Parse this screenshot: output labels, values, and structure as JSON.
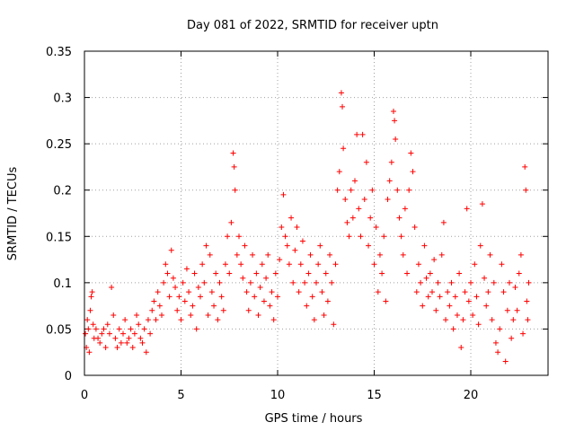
{
  "chart_data": {
    "type": "scatter",
    "title": "Day 081 of 2022, SRMTID for receiver uptn",
    "xlabel": "GPS time / hours",
    "ylabel": "SRMTID / TECUs",
    "xlim": [
      0,
      24
    ],
    "ylim": [
      0,
      0.35
    ],
    "xticks": [
      "0",
      "5",
      "10",
      "15",
      "20"
    ],
    "yticks": [
      "0",
      "0.05",
      "0.1",
      "0.15",
      "0.2",
      "0.25",
      "0.3",
      "0.35"
    ],
    "grid": true,
    "marker": "plus",
    "color": "#ff0000",
    "series": [
      {
        "name": "SRMTID",
        "points": [
          [
            0.05,
            0.045
          ],
          [
            0.1,
            0.03
          ],
          [
            0.15,
            0.06
          ],
          [
            0.2,
            0.05
          ],
          [
            0.25,
            0.025
          ],
          [
            0.3,
            0.07
          ],
          [
            0.35,
            0.085
          ],
          [
            0.4,
            0.09
          ],
          [
            0.45,
            0.055
          ],
          [
            0.5,
            0.04
          ],
          [
            0.6,
            0.05
          ],
          [
            0.7,
            0.04
          ],
          [
            0.8,
            0.035
          ],
          [
            0.9,
            0.045
          ],
          [
            1.0,
            0.05
          ],
          [
            1.1,
            0.03
          ],
          [
            1.2,
            0.055
          ],
          [
            1.3,
            0.045
          ],
          [
            1.4,
            0.095
          ],
          [
            1.5,
            0.065
          ],
          [
            1.6,
            0.04
          ],
          [
            1.7,
            0.03
          ],
          [
            1.8,
            0.05
          ],
          [
            1.9,
            0.035
          ],
          [
            2.0,
            0.045
          ],
          [
            2.1,
            0.06
          ],
          [
            2.2,
            0.035
          ],
          [
            2.3,
            0.04
          ],
          [
            2.4,
            0.05
          ],
          [
            2.5,
            0.03
          ],
          [
            2.6,
            0.045
          ],
          [
            2.7,
            0.065
          ],
          [
            2.8,
            0.055
          ],
          [
            2.9,
            0.04
          ],
          [
            3.0,
            0.035
          ],
          [
            3.1,
            0.05
          ],
          [
            3.2,
            0.025
          ],
          [
            3.3,
            0.06
          ],
          [
            3.4,
            0.045
          ],
          [
            3.5,
            0.07
          ],
          [
            3.6,
            0.08
          ],
          [
            3.7,
            0.06
          ],
          [
            3.8,
            0.09
          ],
          [
            3.9,
            0.075
          ],
          [
            4.0,
            0.065
          ],
          [
            4.1,
            0.1
          ],
          [
            4.2,
            0.12
          ],
          [
            4.3,
            0.11
          ],
          [
            4.4,
            0.085
          ],
          [
            4.5,
            0.135
          ],
          [
            4.6,
            0.105
          ],
          [
            4.7,
            0.095
          ],
          [
            4.8,
            0.07
          ],
          [
            4.9,
            0.085
          ],
          [
            5.0,
            0.06
          ],
          [
            5.1,
            0.1
          ],
          [
            5.2,
            0.08
          ],
          [
            5.3,
            0.115
          ],
          [
            5.4,
            0.09
          ],
          [
            5.5,
            0.065
          ],
          [
            5.6,
            0.075
          ],
          [
            5.7,
            0.11
          ],
          [
            5.8,
            0.05
          ],
          [
            5.9,
            0.095
          ],
          [
            6.0,
            0.085
          ],
          [
            6.1,
            0.12
          ],
          [
            6.2,
            0.1
          ],
          [
            6.3,
            0.14
          ],
          [
            6.4,
            0.065
          ],
          [
            6.5,
            0.13
          ],
          [
            6.6,
            0.09
          ],
          [
            6.7,
            0.075
          ],
          [
            6.8,
            0.11
          ],
          [
            6.9,
            0.06
          ],
          [
            7.0,
            0.1
          ],
          [
            7.1,
            0.085
          ],
          [
            7.2,
            0.07
          ],
          [
            7.3,
            0.12
          ],
          [
            7.4,
            0.15
          ],
          [
            7.5,
            0.11
          ],
          [
            7.6,
            0.165
          ],
          [
            7.7,
            0.24
          ],
          [
            7.75,
            0.225
          ],
          [
            7.8,
            0.2
          ],
          [
            7.9,
            0.13
          ],
          [
            8.0,
            0.15
          ],
          [
            8.1,
            0.12
          ],
          [
            8.2,
            0.105
          ],
          [
            8.3,
            0.14
          ],
          [
            8.4,
            0.09
          ],
          [
            8.5,
            0.07
          ],
          [
            8.6,
            0.1
          ],
          [
            8.7,
            0.13
          ],
          [
            8.8,
            0.085
          ],
          [
            8.9,
            0.11
          ],
          [
            9.0,
            0.065
          ],
          [
            9.1,
            0.095
          ],
          [
            9.2,
            0.12
          ],
          [
            9.3,
            0.08
          ],
          [
            9.4,
            0.105
          ],
          [
            9.5,
            0.13
          ],
          [
            9.6,
            0.075
          ],
          [
            9.7,
            0.09
          ],
          [
            9.8,
            0.06
          ],
          [
            9.9,
            0.11
          ],
          [
            10.0,
            0.085
          ],
          [
            10.1,
            0.125
          ],
          [
            10.2,
            0.16
          ],
          [
            10.3,
            0.195
          ],
          [
            10.4,
            0.15
          ],
          [
            10.5,
            0.14
          ],
          [
            10.6,
            0.12
          ],
          [
            10.7,
            0.17
          ],
          [
            10.8,
            0.1
          ],
          [
            10.9,
            0.135
          ],
          [
            11.0,
            0.16
          ],
          [
            11.1,
            0.09
          ],
          [
            11.2,
            0.12
          ],
          [
            11.3,
            0.145
          ],
          [
            11.4,
            0.1
          ],
          [
            11.5,
            0.075
          ],
          [
            11.6,
            0.11
          ],
          [
            11.7,
            0.13
          ],
          [
            11.8,
            0.085
          ],
          [
            11.9,
            0.06
          ],
          [
            12.0,
            0.1
          ],
          [
            12.1,
            0.12
          ],
          [
            12.2,
            0.14
          ],
          [
            12.3,
            0.09
          ],
          [
            12.4,
            0.065
          ],
          [
            12.5,
            0.11
          ],
          [
            12.6,
            0.08
          ],
          [
            12.7,
            0.13
          ],
          [
            12.8,
            0.1
          ],
          [
            12.9,
            0.055
          ],
          [
            13.0,
            0.12
          ],
          [
            13.1,
            0.2
          ],
          [
            13.2,
            0.22
          ],
          [
            13.3,
            0.305
          ],
          [
            13.35,
            0.29
          ],
          [
            13.4,
            0.245
          ],
          [
            13.5,
            0.19
          ],
          [
            13.6,
            0.165
          ],
          [
            13.7,
            0.15
          ],
          [
            13.8,
            0.2
          ],
          [
            13.9,
            0.17
          ],
          [
            14.0,
            0.21
          ],
          [
            14.1,
            0.26
          ],
          [
            14.2,
            0.18
          ],
          [
            14.3,
            0.15
          ],
          [
            14.4,
            0.26
          ],
          [
            14.5,
            0.19
          ],
          [
            14.6,
            0.23
          ],
          [
            14.7,
            0.14
          ],
          [
            14.8,
            0.17
          ],
          [
            14.9,
            0.2
          ],
          [
            15.0,
            0.12
          ],
          [
            15.1,
            0.16
          ],
          [
            15.2,
            0.09
          ],
          [
            15.3,
            0.13
          ],
          [
            15.4,
            0.11
          ],
          [
            15.5,
            0.15
          ],
          [
            15.6,
            0.08
          ],
          [
            15.7,
            0.19
          ],
          [
            15.8,
            0.21
          ],
          [
            15.9,
            0.23
          ],
          [
            16.0,
            0.285
          ],
          [
            16.05,
            0.275
          ],
          [
            16.1,
            0.255
          ],
          [
            16.2,
            0.2
          ],
          [
            16.3,
            0.17
          ],
          [
            16.4,
            0.15
          ],
          [
            16.5,
            0.13
          ],
          [
            16.6,
            0.18
          ],
          [
            16.7,
            0.11
          ],
          [
            16.8,
            0.2
          ],
          [
            16.9,
            0.24
          ],
          [
            17.0,
            0.22
          ],
          [
            17.1,
            0.16
          ],
          [
            17.2,
            0.09
          ],
          [
            17.3,
            0.12
          ],
          [
            17.4,
            0.1
          ],
          [
            17.5,
            0.075
          ],
          [
            17.6,
            0.14
          ],
          [
            17.7,
            0.105
          ],
          [
            17.8,
            0.085
          ],
          [
            17.9,
            0.11
          ],
          [
            18.0,
            0.09
          ],
          [
            18.1,
            0.125
          ],
          [
            18.2,
            0.07
          ],
          [
            18.3,
            0.1
          ],
          [
            18.4,
            0.085
          ],
          [
            18.5,
            0.13
          ],
          [
            18.6,
            0.165
          ],
          [
            18.7,
            0.06
          ],
          [
            18.8,
            0.09
          ],
          [
            18.9,
            0.075
          ],
          [
            19.0,
            0.1
          ],
          [
            19.1,
            0.05
          ],
          [
            19.2,
            0.085
          ],
          [
            19.3,
            0.065
          ],
          [
            19.4,
            0.11
          ],
          [
            19.5,
            0.03
          ],
          [
            19.6,
            0.06
          ],
          [
            19.7,
            0.09
          ],
          [
            19.8,
            0.18
          ],
          [
            19.9,
            0.08
          ],
          [
            20.0,
            0.1
          ],
          [
            20.1,
            0.065
          ],
          [
            20.2,
            0.12
          ],
          [
            20.3,
            0.085
          ],
          [
            20.4,
            0.055
          ],
          [
            20.5,
            0.14
          ],
          [
            20.6,
            0.185
          ],
          [
            20.7,
            0.105
          ],
          [
            20.8,
            0.075
          ],
          [
            20.9,
            0.09
          ],
          [
            21.0,
            0.13
          ],
          [
            21.1,
            0.06
          ],
          [
            21.2,
            0.1
          ],
          [
            21.3,
            0.035
          ],
          [
            21.4,
            0.025
          ],
          [
            21.5,
            0.05
          ],
          [
            21.6,
            0.12
          ],
          [
            21.7,
            0.09
          ],
          [
            21.8,
            0.015
          ],
          [
            21.9,
            0.07
          ],
          [
            22.0,
            0.1
          ],
          [
            22.1,
            0.04
          ],
          [
            22.2,
            0.06
          ],
          [
            22.3,
            0.095
          ],
          [
            22.4,
            0.07
          ],
          [
            22.5,
            0.11
          ],
          [
            22.6,
            0.13
          ],
          [
            22.7,
            0.045
          ],
          [
            22.8,
            0.225
          ],
          [
            22.85,
            0.2
          ],
          [
            22.9,
            0.08
          ],
          [
            22.95,
            0.06
          ],
          [
            23.0,
            0.1
          ]
        ]
      }
    ]
  }
}
